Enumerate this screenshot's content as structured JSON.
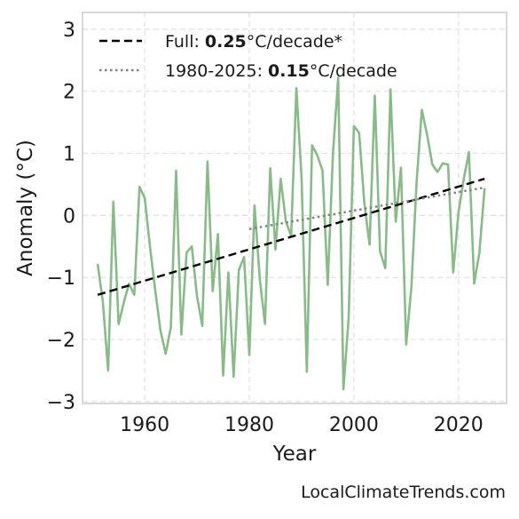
{
  "chart_data": {
    "type": "line",
    "xlabel": "Year",
    "ylabel": "Anomaly (°C)",
    "footer": "LocalClimateTrends.com",
    "xlim": [
      1948.1,
      2029.2
    ],
    "ylim": [
      -3.03,
      3.27
    ],
    "xticks": [
      1960,
      1980,
      2000,
      2020
    ],
    "yticks": [
      {
        "value": -3,
        "label": "−3"
      },
      {
        "value": -2,
        "label": "−2"
      },
      {
        "value": -1,
        "label": "−1"
      },
      0,
      1,
      2,
      3
    ],
    "grid": true,
    "legend": "upper-left",
    "series": [
      {
        "color": "#88bb88",
        "x": [
          1951,
          1952,
          1953,
          1954,
          1955,
          1956,
          1957,
          1958,
          1959,
          1960,
          1961,
          1962,
          1963,
          1964,
          1965,
          1966,
          1967,
          1968,
          1969,
          1970,
          1971,
          1972,
          1973,
          1974,
          1975,
          1976,
          1977,
          1978,
          1979,
          1980,
          1981,
          1982,
          1983,
          1984,
          1985,
          1986,
          1987,
          1988,
          1989,
          1990,
          1991,
          1992,
          1993,
          1994,
          1995,
          1996,
          1997,
          1998,
          1999,
          2000,
          2001,
          2002,
          2003,
          2004,
          2005,
          2006,
          2007,
          2008,
          2009,
          2010,
          2011,
          2012,
          2013,
          2014,
          2015,
          2016,
          2017,
          2018,
          2019,
          2020,
          2021,
          2022,
          2023,
          2024,
          2025
        ],
        "values": [
          -0.78,
          -1.4,
          -2.5,
          0.22,
          -1.75,
          -1.4,
          -1.1,
          -1.28,
          0.46,
          0.28,
          -0.5,
          -1.2,
          -1.85,
          -2.23,
          -1.8,
          0.72,
          -1.92,
          -0.6,
          -0.5,
          -1.3,
          -1.78,
          0.87,
          -1.22,
          -0.3,
          -2.58,
          -0.92,
          -2.6,
          -0.88,
          -0.67,
          -2.25,
          0.16,
          -1.02,
          -1.75,
          0.76,
          -0.55,
          0.59,
          -0.1,
          -0.33,
          2.05,
          0.6,
          -2.52,
          1.13,
          0.97,
          0.72,
          -1.12,
          1.0,
          2.22,
          -2.8,
          -1.65,
          1.44,
          1.33,
          0.2,
          -0.47,
          1.93,
          -0.58,
          -0.85,
          2.03,
          -0.1,
          0.77,
          -2.08,
          -1.15,
          0.55,
          1.7,
          1.3,
          0.82,
          0.7,
          0.84,
          0.82,
          -0.92,
          0.05,
          0.58,
          1.02,
          -1.1,
          -0.6,
          0.44
        ]
      }
    ],
    "trends": [
      {
        "label": "Full:",
        "rate": 0.25,
        "unit": "°C/decade*",
        "style": "dashed",
        "color": "#000000",
        "x": [
          1951,
          2025
        ],
        "values": [
          -1.28,
          0.59
        ]
      },
      {
        "label": "1980-2025:",
        "rate": 0.15,
        "unit": "°C/decade",
        "style": "dotted",
        "color": "#808080",
        "x": [
          1980,
          2025
        ],
        "values": [
          -0.22,
          0.45
        ]
      }
    ]
  }
}
